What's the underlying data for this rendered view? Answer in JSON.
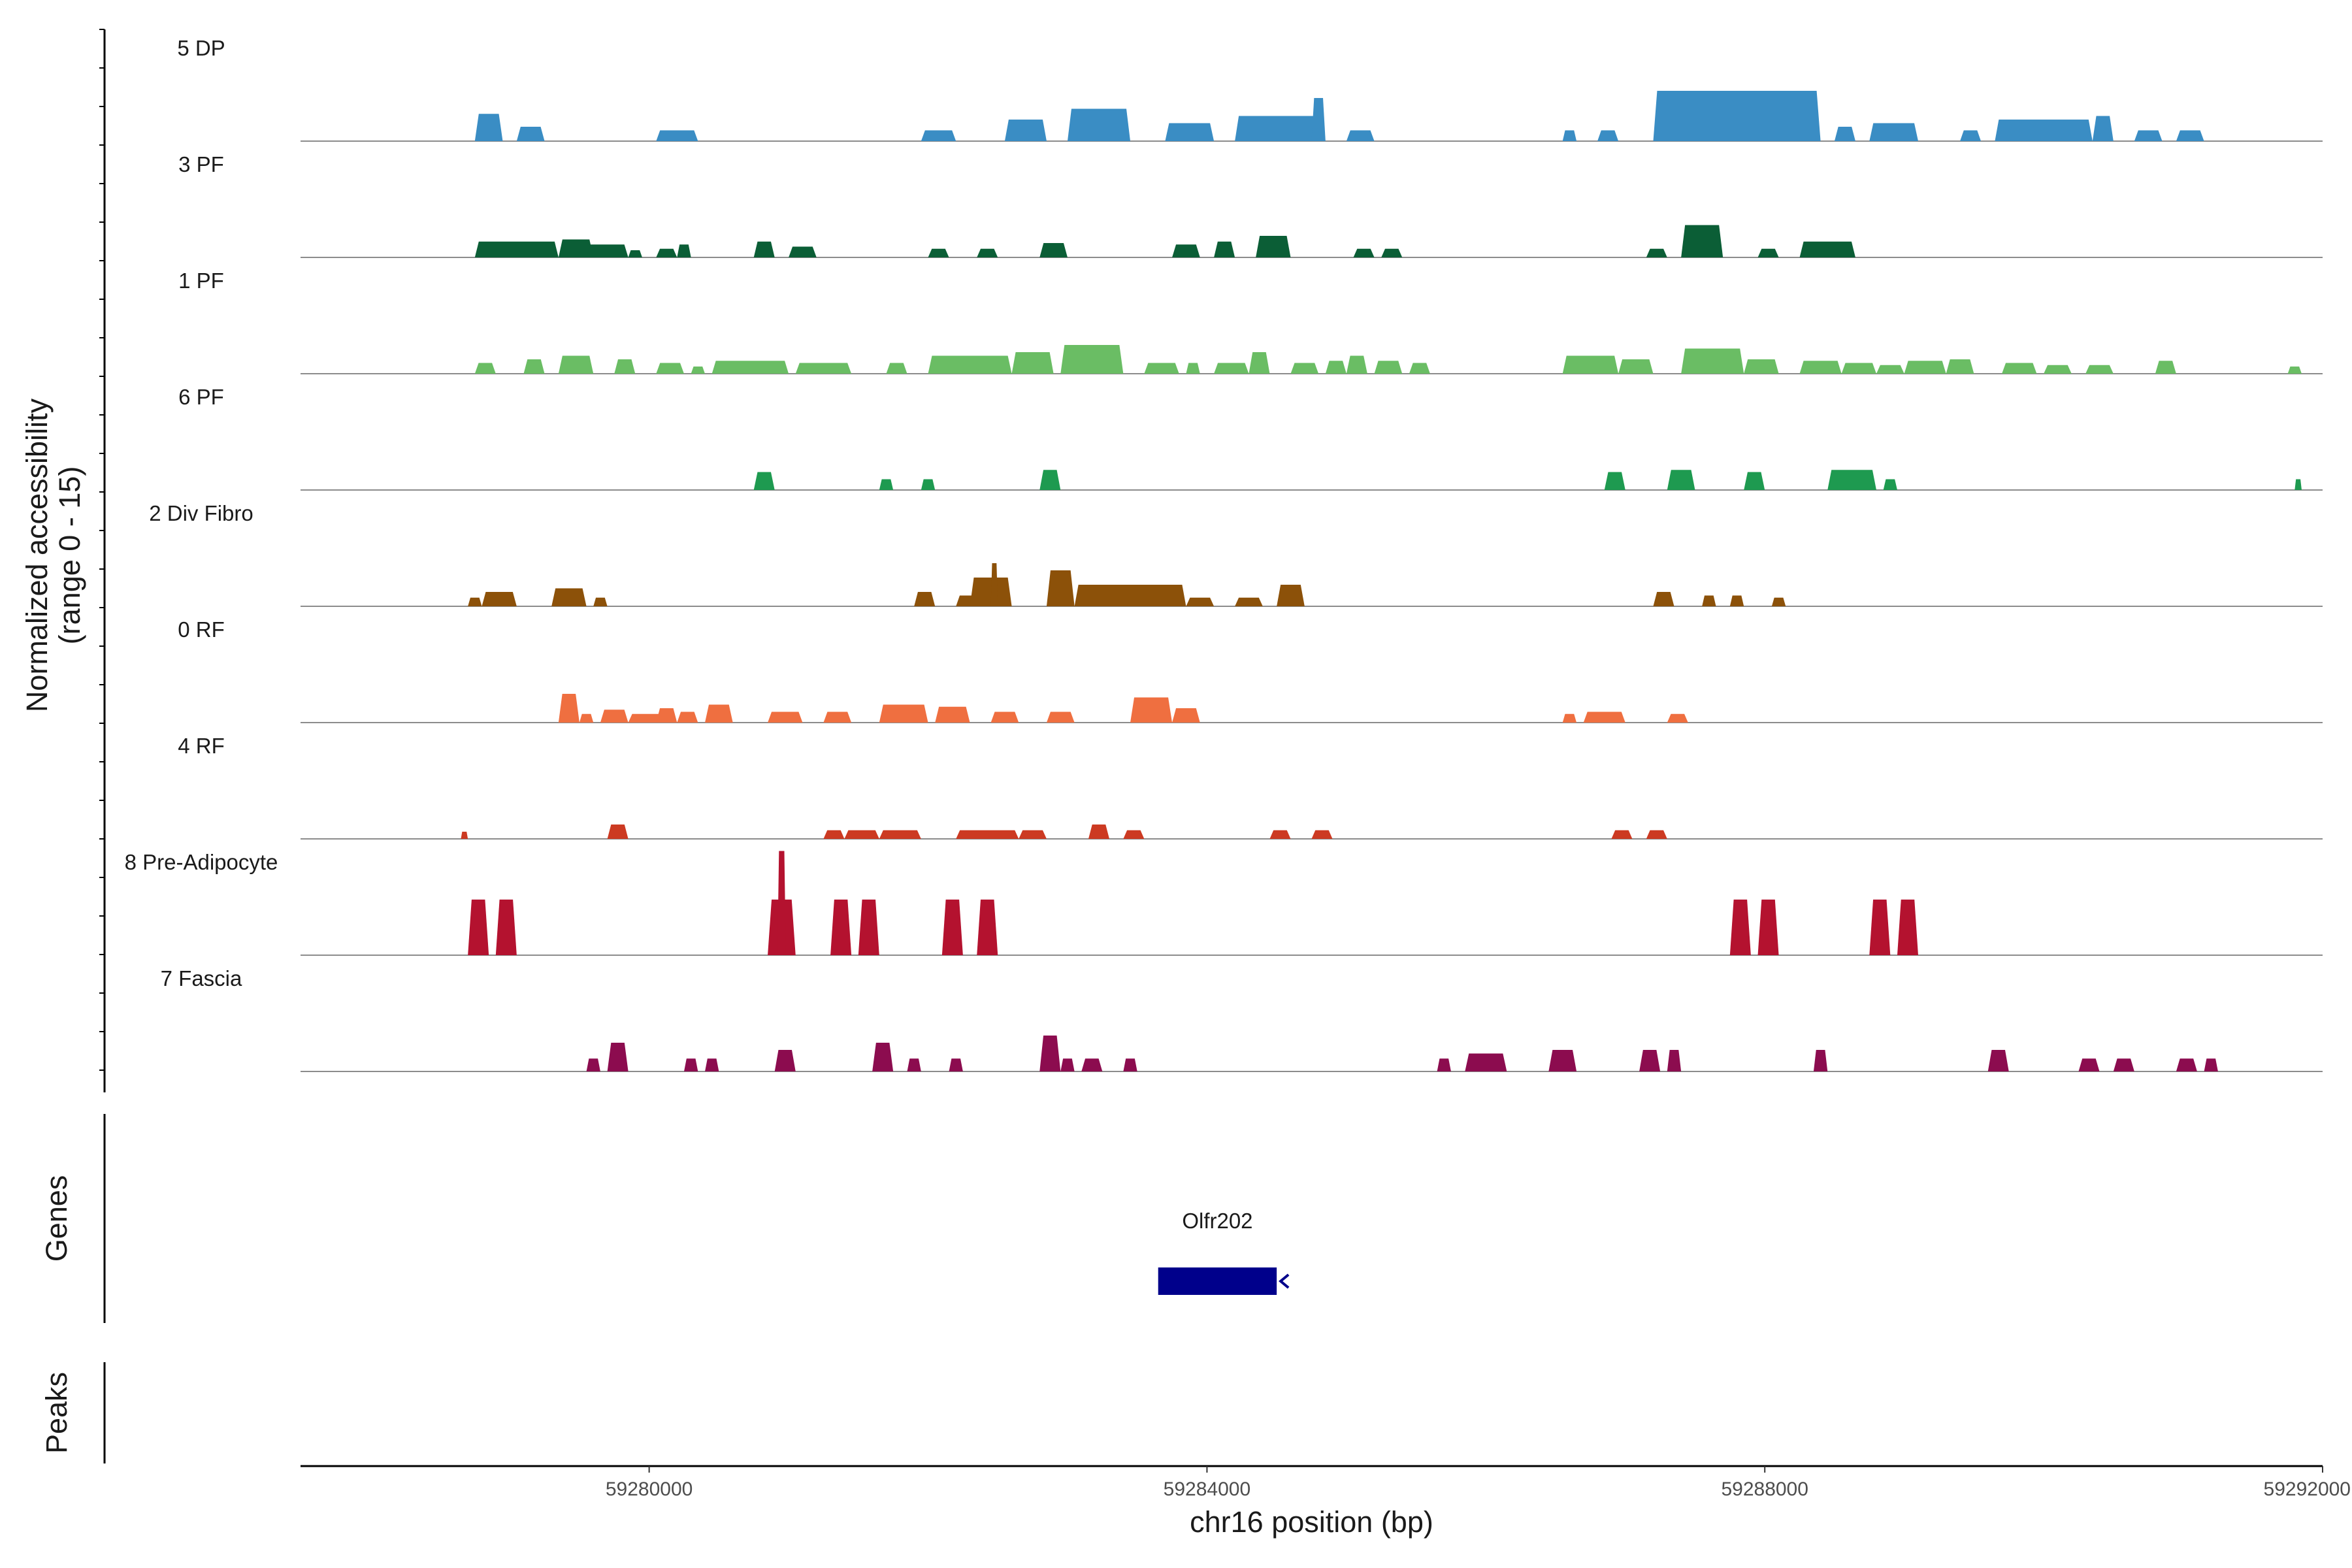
{
  "chart_data": {
    "type": "area",
    "title": "",
    "ylabel": [
      "Normalized accessibility",
      "(range 0 - 15)"
    ],
    "xlabel": "chr16 position (bp)",
    "xlim": [
      59277500,
      59292000
    ],
    "ylim": [
      0,
      15
    ],
    "x_ticks": [
      {
        "value": 59280000,
        "label": "59280000"
      },
      {
        "value": 59284000,
        "label": "59284000"
      },
      {
        "value": 59288000,
        "label": "59288000"
      },
      {
        "value": 59292000,
        "label": "59292000"
      }
    ],
    "series": [
      {
        "name": "5 DP",
        "color": "#3a8dc4",
        "peaks": [
          [
            59278750,
            59278950,
            3.8
          ],
          [
            59279050,
            59279250,
            2.0
          ],
          [
            59280050,
            59280350,
            1.5
          ],
          [
            59281950,
            59282200,
            1.5
          ],
          [
            59282550,
            59282850,
            3.0
          ],
          [
            59283000,
            59283450,
            4.5
          ],
          [
            59283700,
            59284050,
            2.5
          ],
          [
            59284200,
            59284800,
            3.5
          ],
          [
            59284750,
            59284850,
            6.0
          ],
          [
            59285000,
            59285200,
            1.5
          ],
          [
            59286550,
            59286650,
            1.5
          ],
          [
            59286800,
            59286950,
            1.5
          ],
          [
            59287200,
            59288400,
            7.0
          ],
          [
            59288500,
            59288650,
            2.0
          ],
          [
            59288750,
            59289100,
            2.5
          ],
          [
            59289400,
            59289550,
            1.5
          ],
          [
            59289650,
            59290350,
            3.0
          ],
          [
            59290350,
            59290500,
            3.5
          ],
          [
            59290650,
            59290850,
            1.5
          ],
          [
            59290950,
            59291150,
            1.5
          ]
        ]
      },
      {
        "name": "3 PF",
        "color": "#0b5e36",
        "peaks": [
          [
            59278750,
            59279350,
            2.2
          ],
          [
            59279350,
            59279600,
            2.5
          ],
          [
            59279550,
            59279850,
            1.8
          ],
          [
            59279850,
            59279950,
            1.0
          ],
          [
            59280050,
            59280200,
            1.2
          ],
          [
            59280200,
            59280300,
            1.8
          ],
          [
            59280750,
            59280900,
            2.2
          ],
          [
            59281000,
            59281200,
            1.5
          ],
          [
            59282000,
            59282150,
            1.2
          ],
          [
            59282350,
            59282500,
            1.2
          ],
          [
            59282800,
            59283000,
            2.0
          ],
          [
            59283750,
            59283950,
            1.8
          ],
          [
            59284050,
            59284200,
            2.2
          ],
          [
            59284350,
            59284600,
            3.0
          ],
          [
            59285050,
            59285200,
            1.2
          ],
          [
            59285250,
            59285400,
            1.2
          ],
          [
            59287150,
            59287300,
            1.2
          ],
          [
            59287400,
            59287700,
            4.5
          ],
          [
            59287950,
            59288100,
            1.2
          ],
          [
            59288250,
            59288650,
            2.2
          ]
        ]
      },
      {
        "name": "1 PF",
        "color": "#6abd64",
        "peaks": [
          [
            59278750,
            59278900,
            1.5
          ],
          [
            59279100,
            59279250,
            2.0
          ],
          [
            59279350,
            59279600,
            2.5
          ],
          [
            59279750,
            59279900,
            2.0
          ],
          [
            59280050,
            59280250,
            1.5
          ],
          [
            59280300,
            59280400,
            1.0
          ],
          [
            59280450,
            59281000,
            1.8
          ],
          [
            59281050,
            59281450,
            1.5
          ],
          [
            59281700,
            59281850,
            1.5
          ],
          [
            59282000,
            59282600,
            2.5
          ],
          [
            59282600,
            59282900,
            3.0
          ],
          [
            59282950,
            59283400,
            4.0
          ],
          [
            59283550,
            59283800,
            1.5
          ],
          [
            59283850,
            59283950,
            1.5
          ],
          [
            59284050,
            59284300,
            1.5
          ],
          [
            59284300,
            59284450,
            3.0
          ],
          [
            59284600,
            59284800,
            1.5
          ],
          [
            59284850,
            59285000,
            1.8
          ],
          [
            59285000,
            59285150,
            2.5
          ],
          [
            59285200,
            59285400,
            1.8
          ],
          [
            59285450,
            59285600,
            1.5
          ],
          [
            59286550,
            59286950,
            2.5
          ],
          [
            59286950,
            59287200,
            2.0
          ],
          [
            59287400,
            59287850,
            3.5
          ],
          [
            59287850,
            59288100,
            2.0
          ],
          [
            59288250,
            59288550,
            1.8
          ],
          [
            59288550,
            59288800,
            1.5
          ],
          [
            59288800,
            59289000,
            1.2
          ],
          [
            59289000,
            59289300,
            1.8
          ],
          [
            59289300,
            59289500,
            2.0
          ],
          [
            59289700,
            59289950,
            1.5
          ],
          [
            59290000,
            59290200,
            1.2
          ],
          [
            59290300,
            59290500,
            1.2
          ],
          [
            59290800,
            59290950,
            1.8
          ],
          [
            59291750,
            59291850,
            1.0
          ]
        ]
      },
      {
        "name": "6 PF",
        "color": "#1e9a50",
        "peaks": [
          [
            59280750,
            59280900,
            2.5
          ],
          [
            59281650,
            59281750,
            1.5
          ],
          [
            59281950,
            59282050,
            1.5
          ],
          [
            59282800,
            59282950,
            2.8
          ],
          [
            59286850,
            59287000,
            2.5
          ],
          [
            59287300,
            59287500,
            2.8
          ],
          [
            59287850,
            59288000,
            2.5
          ],
          [
            59288450,
            59288800,
            2.8
          ],
          [
            59288850,
            59288950,
            1.5
          ],
          [
            59291800,
            59291850,
            1.5
          ]
        ]
      },
      {
        "name": "2 Div Fibro",
        "color": "#8c5109",
        "peaks": [
          [
            59278700,
            59278800,
            1.2
          ],
          [
            59278800,
            59279050,
            2.0
          ],
          [
            59279300,
            59279550,
            2.5
          ],
          [
            59279600,
            59279700,
            1.2
          ],
          [
            59281900,
            59282050,
            2.0
          ],
          [
            59282200,
            59282350,
            1.5
          ],
          [
            59282300,
            59282600,
            4.0
          ],
          [
            59282450,
            59282500,
            6.0
          ],
          [
            59282850,
            59283050,
            5.0
          ],
          [
            59283050,
            59283850,
            3.0
          ],
          [
            59283850,
            59284050,
            1.2
          ],
          [
            59284200,
            59284400,
            1.2
          ],
          [
            59284500,
            59284700,
            3.0
          ],
          [
            59287200,
            59287350,
            2.0
          ],
          [
            59287550,
            59287650,
            1.5
          ],
          [
            59287750,
            59287850,
            1.5
          ],
          [
            59288050,
            59288150,
            1.2
          ]
        ]
      },
      {
        "name": "0 RF",
        "color": "#ef6f40",
        "peaks": [
          [
            59279350,
            59279500,
            4.0
          ],
          [
            59279500,
            59279600,
            1.2
          ],
          [
            59279650,
            59279850,
            1.8
          ],
          [
            59279850,
            59280200,
            1.2
          ],
          [
            59280050,
            59280200,
            2.0
          ],
          [
            59280200,
            59280350,
            1.5
          ],
          [
            59280400,
            59280600,
            2.5
          ],
          [
            59280850,
            59281100,
            1.5
          ],
          [
            59281250,
            59281450,
            1.5
          ],
          [
            59281650,
            59282000,
            2.5
          ],
          [
            59282050,
            59282300,
            2.2
          ],
          [
            59282450,
            59282650,
            1.5
          ],
          [
            59282850,
            59283050,
            1.5
          ],
          [
            59283450,
            59283750,
            3.5
          ],
          [
            59283750,
            59283950,
            2.0
          ],
          [
            59286550,
            59286650,
            1.2
          ],
          [
            59286700,
            59287000,
            1.5
          ],
          [
            59287300,
            59287450,
            1.2
          ]
        ]
      },
      {
        "name": "4 RF",
        "color": "#cc3a22",
        "peaks": [
          [
            59278650,
            59278700,
            1.0
          ],
          [
            59279700,
            59279850,
            2.0
          ],
          [
            59281250,
            59281400,
            1.2
          ],
          [
            59281400,
            59281650,
            1.2
          ],
          [
            59281650,
            59281950,
            1.2
          ],
          [
            59282200,
            59282650,
            1.2
          ],
          [
            59282650,
            59282850,
            1.2
          ],
          [
            59283150,
            59283300,
            2.0
          ],
          [
            59283400,
            59283550,
            1.2
          ],
          [
            59284450,
            59284600,
            1.2
          ],
          [
            59284750,
            59284900,
            1.2
          ],
          [
            59286900,
            59287050,
            1.2
          ],
          [
            59287150,
            59287300,
            1.2
          ]
        ]
      },
      {
        "name": "8 Pre-Adipocyte",
        "color": "#b4122f",
        "peaks": [
          [
            59278700,
            59278850,
            8.0
          ],
          [
            59278900,
            59279050,
            8.0
          ],
          [
            59280850,
            59281050,
            8.0
          ],
          [
            59280920,
            59280980,
            15.0
          ],
          [
            59281300,
            59281450,
            8.0
          ],
          [
            59281500,
            59281650,
            8.0
          ],
          [
            59282100,
            59282250,
            8.0
          ],
          [
            59282350,
            59282500,
            8.0
          ],
          [
            59287750,
            59287900,
            8.0
          ],
          [
            59287950,
            59288100,
            8.0
          ],
          [
            59288750,
            59288900,
            8.0
          ],
          [
            59288950,
            59289100,
            8.0
          ]
        ]
      },
      {
        "name": "7 Fascia",
        "color": "#8c0c4f",
        "peaks": [
          [
            59279550,
            59279650,
            1.8
          ],
          [
            59279700,
            59279850,
            4.0
          ],
          [
            59280250,
            59280350,
            1.8
          ],
          [
            59280400,
            59280500,
            1.8
          ],
          [
            59280900,
            59281050,
            3.0
          ],
          [
            59281600,
            59281750,
            4.0
          ],
          [
            59281850,
            59281950,
            1.8
          ],
          [
            59282150,
            59282250,
            1.8
          ],
          [
            59282800,
            59282950,
            5.0
          ],
          [
            59282950,
            59283050,
            1.8
          ],
          [
            59283100,
            59283250,
            1.8
          ],
          [
            59283400,
            59283500,
            1.8
          ],
          [
            59285650,
            59285750,
            1.8
          ],
          [
            59285850,
            59286150,
            2.5
          ],
          [
            59286450,
            59286650,
            3.0
          ],
          [
            59287100,
            59287250,
            3.0
          ],
          [
            59287300,
            59287400,
            3.0
          ],
          [
            59288350,
            59288450,
            3.0
          ],
          [
            59289600,
            59289750,
            3.0
          ],
          [
            59290250,
            59290400,
            1.8
          ],
          [
            59290500,
            59290650,
            1.8
          ],
          [
            59290950,
            59291100,
            1.8
          ],
          [
            59291150,
            59291250,
            1.8
          ]
        ]
      }
    ],
    "genes": {
      "title": "Genes",
      "items": [
        {
          "name": "Olfr202",
          "start": 59283650,
          "end": 59284500,
          "strand": "-",
          "color": "#00008b"
        }
      ]
    },
    "peaks_panel": {
      "title": "Peaks",
      "items": []
    }
  }
}
